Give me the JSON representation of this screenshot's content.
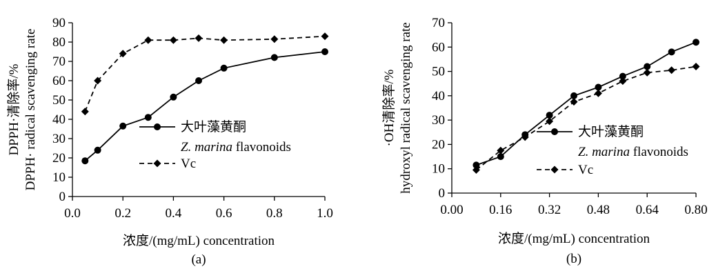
{
  "chart_data": [
    {
      "type": "line",
      "panel_label": "(a)",
      "ylabel_cn": "DPPH·清除率/%",
      "ylabel_en": "DPPH· radical scavenging rate",
      "xlabel": "浓度/(mg/mL)  concentration",
      "xlim": [
        0.0,
        1.0
      ],
      "ylim": [
        0,
        90
      ],
      "xticks": [
        "0.0",
        "0.2",
        "0.4",
        "0.6",
        "0.8",
        "1.0"
      ],
      "xtick_values": [
        0.0,
        0.2,
        0.4,
        0.6,
        0.8,
        1.0
      ],
      "yticks": [
        "0",
        "10",
        "20",
        "30",
        "40",
        "50",
        "60",
        "70",
        "80",
        "90"
      ],
      "ytick_values": [
        0,
        10,
        20,
        30,
        40,
        50,
        60,
        70,
        80,
        90
      ],
      "legend_placement": "right-center",
      "series": [
        {
          "name": "大叶藻黄酮",
          "name_en_italic": "Z. marina",
          "name_en_rest": " flavonoids",
          "line": "solid",
          "marker": "circle",
          "color": "#000000",
          "x": [
            0.05,
            0.1,
            0.2,
            0.3,
            0.4,
            0.5,
            0.6,
            0.8,
            1.0
          ],
          "y": [
            18.5,
            24,
            36.5,
            41,
            51.5,
            60,
            66.5,
            72,
            75
          ]
        },
        {
          "name": "Vc",
          "line": "dashed",
          "marker": "diamond",
          "color": "#000000",
          "x": [
            0.05,
            0.1,
            0.2,
            0.3,
            0.4,
            0.5,
            0.6,
            0.8,
            1.0
          ],
          "y": [
            44,
            60,
            74,
            81,
            81,
            82,
            81,
            81.5,
            83
          ]
        }
      ]
    },
    {
      "type": "line",
      "panel_label": "(b)",
      "ylabel_cn": "·OH清除率/%",
      "ylabel_en": "hydroxyl radical scavenging rate",
      "xlabel": "浓度/(mg/mL)  concentration",
      "xlim": [
        0.0,
        0.8
      ],
      "ylim": [
        0,
        70
      ],
      "xticks": [
        "0.00",
        "0.16",
        "0.32",
        "0.48",
        "0.64",
        "0.80"
      ],
      "xtick_values": [
        0.0,
        0.16,
        0.32,
        0.48,
        0.64,
        0.8
      ],
      "yticks": [
        "0",
        "10",
        "20",
        "30",
        "40",
        "50",
        "60",
        "70"
      ],
      "ytick_values": [
        0,
        10,
        20,
        30,
        40,
        50,
        60,
        70
      ],
      "legend_placement": "right-center",
      "series": [
        {
          "name": "大叶藻黄酮",
          "name_en_italic": "Z. marina",
          "name_en_rest": " flavonoids",
          "line": "solid",
          "marker": "circle",
          "color": "#000000",
          "x": [
            0.08,
            0.16,
            0.24,
            0.32,
            0.4,
            0.48,
            0.56,
            0.64,
            0.72,
            0.8
          ],
          "y": [
            11.5,
            15,
            24,
            32,
            40,
            43.5,
            48,
            52,
            58,
            62
          ]
        },
        {
          "name": "Vc",
          "line": "dashed",
          "marker": "diamond",
          "color": "#000000",
          "x": [
            0.08,
            0.16,
            0.24,
            0.32,
            0.4,
            0.48,
            0.56,
            0.64,
            0.72,
            0.8
          ],
          "y": [
            9.5,
            17.5,
            23,
            29.5,
            37.5,
            41,
            46,
            49.5,
            50.5,
            52
          ]
        }
      ]
    }
  ]
}
